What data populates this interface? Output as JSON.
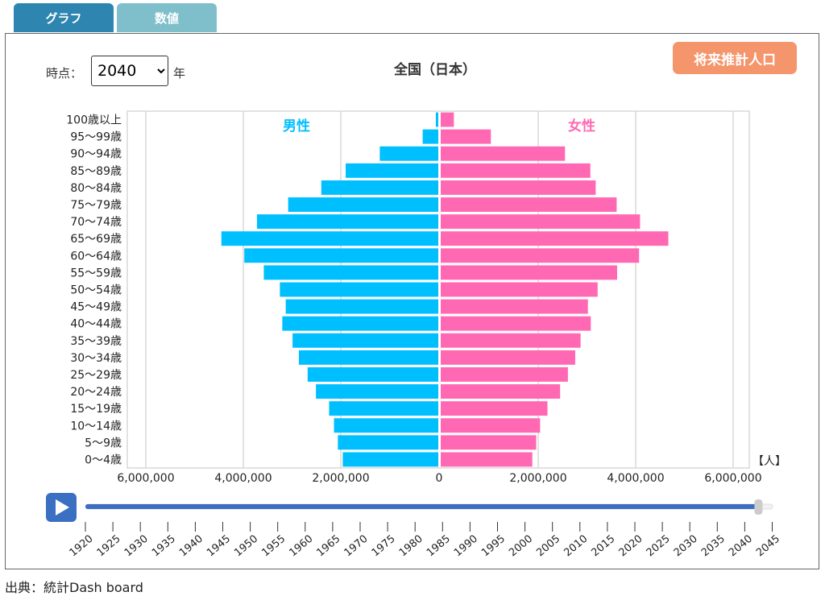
{
  "tabs": {
    "graph": "グラフ",
    "values": "数値"
  },
  "controls": {
    "year_label": "時点：",
    "year_value": "2040",
    "year_suffix": "年",
    "future_button": "将来推計人口"
  },
  "chart_data": {
    "type": "bar",
    "subtype": "population-pyramid",
    "title": "全国（日本）",
    "unit": "【人】",
    "categories": [
      "100歳以上",
      "95〜99歳",
      "90〜94歳",
      "85〜89歳",
      "80〜84歳",
      "75〜79歳",
      "70〜74歳",
      "65〜69歳",
      "60〜64歳",
      "55〜59歳",
      "50〜54歳",
      "45〜49歳",
      "40〜44歳",
      "35〜39歳",
      "30〜34歳",
      "25〜29歳",
      "20〜24歳",
      "15〜19歳",
      "10〜14歳",
      "5〜9歳",
      "0〜4歳"
    ],
    "series": [
      {
        "name": "男性",
        "color": "#00bfff",
        "values": [
          50000,
          320000,
          1200000,
          1900000,
          2400000,
          3080000,
          3720000,
          4450000,
          3980000,
          3580000,
          3250000,
          3130000,
          3200000,
          2990000,
          2860000,
          2680000,
          2510000,
          2240000,
          2140000,
          2060000,
          1960000
        ]
      },
      {
        "name": "女性",
        "color": "#ff69b4",
        "values": [
          270000,
          1030000,
          2550000,
          3070000,
          3180000,
          3610000,
          4090000,
          4670000,
          4070000,
          3620000,
          3220000,
          3020000,
          3080000,
          2870000,
          2760000,
          2610000,
          2450000,
          2190000,
          2040000,
          1960000,
          1880000
        ]
      }
    ],
    "xlim": [
      -6000000,
      6000000
    ],
    "ticks": [
      "6,000,000",
      "4,000,000",
      "2,000,000",
      "0",
      "2,000,000",
      "4,000,000",
      "6,000,000"
    ],
    "grid": true
  },
  "timeline": {
    "years": [
      "1920",
      "1925",
      "1930",
      "1935",
      "1940",
      "1945",
      "1950",
      "1955",
      "1960",
      "1965",
      "1970",
      "1975",
      "1980",
      "1985",
      "1990",
      "1995",
      "2000",
      "2005",
      "2010",
      "2015",
      "2020",
      "2025",
      "2030",
      "2035",
      "2040",
      "2045"
    ],
    "selected": "2040"
  },
  "source": "出典：統計Dash board"
}
